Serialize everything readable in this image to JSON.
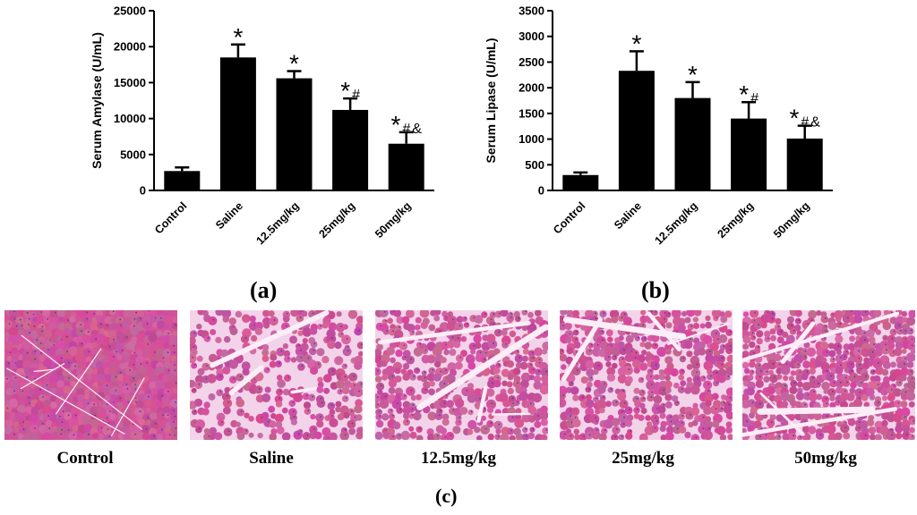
{
  "chart_data": [
    {
      "type": "bar",
      "panel": "(a)",
      "categories": [
        "Control",
        "Saline",
        "12.5mg/kg",
        "25mg/kg",
        "50mg/kg"
      ],
      "values": [
        2700,
        18500,
        15600,
        11200,
        6500
      ],
      "errors": [
        500,
        1800,
        1000,
        1600,
        1600
      ],
      "annotations": [
        "",
        "*",
        "*",
        "* #",
        "*#&"
      ],
      "ylabel": "Serum Amylase (U/mL)",
      "ylim": [
        0,
        25000
      ],
      "yticks": [
        0,
        5000,
        10000,
        15000,
        20000,
        25000
      ],
      "bar_color": "#000000"
    },
    {
      "type": "bar",
      "panel": "(b)",
      "categories": [
        "Control",
        "Saline",
        "12.5mg/kg",
        "25mg/kg",
        "50mg/kg"
      ],
      "values": [
        300,
        2330,
        1800,
        1400,
        1010
      ],
      "errors": [
        50,
        380,
        310,
        320,
        250
      ],
      "annotations": [
        "",
        "*",
        "*",
        "* #",
        "* # &"
      ],
      "ylabel": "Serum Lipase (U/mL)",
      "ylim": [
        0,
        3500
      ],
      "yticks": [
        0,
        500,
        1000,
        1500,
        2000,
        2500,
        3000,
        3500
      ],
      "bar_color": "#000000"
    }
  ],
  "histology": {
    "panel": "(c)",
    "captions": [
      "Control",
      "Saline",
      "12.5mg/kg",
      "25mg/kg",
      "50mg/kg"
    ],
    "tissue_color": "#d4529a",
    "background_color": "#f3d3ea"
  }
}
